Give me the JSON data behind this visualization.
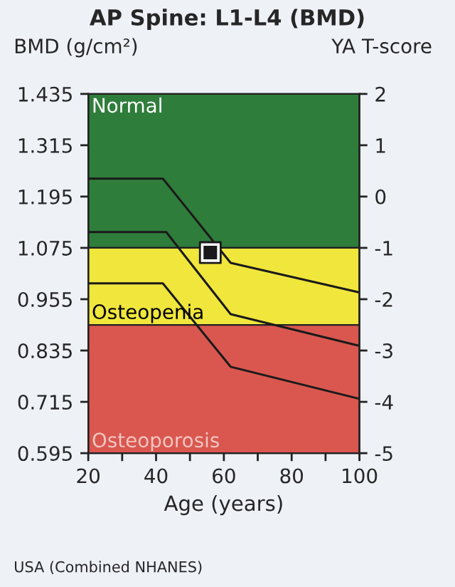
{
  "chart_data": {
    "type": "line",
    "title": "AP Spine: L1-L4 (BMD)",
    "ylabel": "BMD (g/cm²)",
    "y2label": "YA T-score",
    "xlabel": "Age (years)",
    "annotations": [
      "USA (Combined NHANES)"
    ],
    "xlim": [
      20,
      100
    ],
    "xticks": [
      20,
      {
        "value": 30,
        "label": null
      },
      40,
      {
        "value": 50,
        "label": null
      },
      60,
      {
        "value": 70,
        "label": null
      },
      80,
      {
        "value": 90,
        "label": null
      },
      100
    ],
    "ylim": [
      0.595,
      1.435
    ],
    "yticks": [
      0.595,
      0.715,
      0.835,
      0.955,
      1.075,
      1.195,
      1.315,
      1.435
    ],
    "y2lim": [
      -5,
      2
    ],
    "y2ticks": [
      -5,
      -4,
      -3,
      -2,
      -1,
      0,
      1,
      2
    ],
    "bands": [
      {
        "axis": "y",
        "from": 1.075,
        "to": 1.435,
        "label": "Normal",
        "color": "#2f7d3b"
      },
      {
        "axis": "y",
        "from": 0.895,
        "to": 1.075,
        "label": "Osteopenia",
        "color": "#f0e63c"
      },
      {
        "axis": "y",
        "from": 0.595,
        "to": 0.895,
        "label": "Osteoporosis",
        "color": "#d9574f"
      }
    ],
    "series": [
      {
        "type": "line",
        "color": "#1a1a1a",
        "x": [
          20,
          42,
          62,
          100
        ],
        "values": [
          1.237,
          1.237,
          1.04,
          0.971
        ]
      },
      {
        "type": "line",
        "color": "#1a1a1a",
        "x": [
          20,
          43,
          62,
          100
        ],
        "values": [
          1.112,
          1.112,
          0.92,
          0.846
        ]
      },
      {
        "type": "line",
        "color": "#1a1a1a",
        "x": [
          20,
          42,
          62,
          100
        ],
        "values": [
          0.992,
          0.992,
          0.797,
          0.722
        ]
      },
      {
        "type": "scatter",
        "color": "#1a1a1a",
        "marker": "square",
        "x": [
          56
        ],
        "values": [
          1.064
        ]
      }
    ],
    "grid": false
  }
}
